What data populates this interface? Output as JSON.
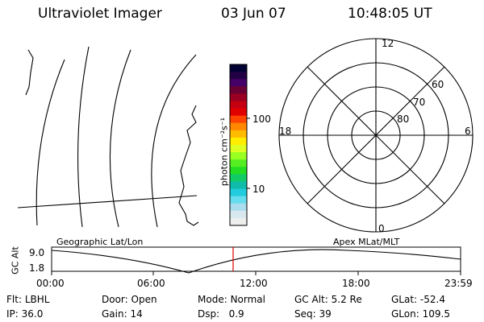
{
  "header": {
    "title": "Ultraviolet Imager",
    "date": "03 Jun 07",
    "time": "10:48:05 UT"
  },
  "colorbar": {
    "label": "photon cm⁻²s⁻¹",
    "ticks": [
      "100",
      "10"
    ],
    "colors": [
      "#000033",
      "#220044",
      "#440066",
      "#6a0033",
      "#9a0022",
      "#c40011",
      "#e00000",
      "#ff4400",
      "#ff8800",
      "#ffbb00",
      "#ffee00",
      "#ddff22",
      "#99ff22",
      "#55ee22",
      "#22dd22",
      "#11cc66",
      "#11bbaa",
      "#22ccdd",
      "#66ddee",
      "#aaddee",
      "#d8e8ee",
      "#eeeeee"
    ]
  },
  "polar_plot": {
    "mlt_labels": {
      "top": "12",
      "left": "18",
      "right": "6",
      "bottom": "0"
    },
    "lat_labels": [
      "60",
      "70",
      "80"
    ]
  },
  "altitude_strip": {
    "ylabel": "GC Alt",
    "y_ticks": [
      "9.0",
      "1.8"
    ],
    "left_caption": "Geographic Lat/Lon",
    "right_caption": "Apex MLat/MLT",
    "x_ticks": [
      "00:00",
      "06:00",
      "12:00",
      "18:00",
      "23:59"
    ],
    "current_time_hours": 10.8
  },
  "status": {
    "row1": [
      {
        "label": "Flt:",
        "value": "LBHL"
      },
      {
        "label": "Door:",
        "value": "Open"
      },
      {
        "label": "Mode:",
        "value": "Normal"
      },
      {
        "label": "GC Alt:",
        "value": "5.2 Re"
      },
      {
        "label": "GLat:",
        "value": "-52.4"
      }
    ],
    "row2": [
      {
        "label": "IP:",
        "value": "36.0"
      },
      {
        "label": "Gain:",
        "value": "14"
      },
      {
        "label": "Dsp:",
        "value": "0.9"
      },
      {
        "label": "Seq:",
        "value": "39"
      },
      {
        "label": "GLon:",
        "value": "109.5"
      }
    ]
  },
  "colors": {
    "marker": "#dd0000",
    "line": "#000000"
  }
}
